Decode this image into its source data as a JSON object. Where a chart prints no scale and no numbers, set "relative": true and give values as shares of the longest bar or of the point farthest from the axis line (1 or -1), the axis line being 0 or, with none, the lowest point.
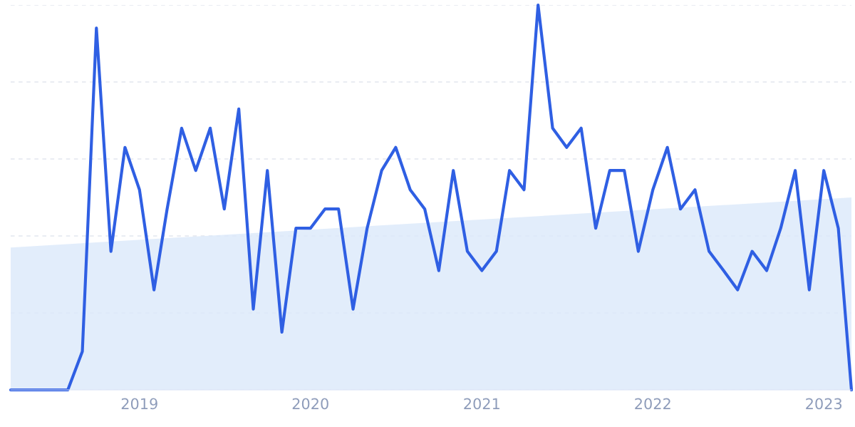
{
  "chart_data": {
    "type": "line",
    "relative": true,
    "xlim": [
      "2018-04",
      "2023-03"
    ],
    "xticks": [
      {
        "value": "2019",
        "label": "2019"
      },
      {
        "value": "2020",
        "label": "2020"
      },
      {
        "value": "2021",
        "label": "2021"
      },
      {
        "value": "2022",
        "label": "2022"
      },
      {
        "value": "2023",
        "label": "2023"
      }
    ],
    "tick_labels": "x",
    "grid": "y",
    "legend": false,
    "marker": "none",
    "line_style": "solid",
    "series": [
      {
        "type": "area",
        "color": "#dbe8fa",
        "x": [
          "2018-04",
          "2023-03"
        ],
        "values": [
          0.37,
          0.5
        ]
      },
      {
        "color": "#2f5fe3",
        "x": [
          "2018-04",
          "2018-05",
          "2018-06",
          "2018-07",
          "2018-08",
          "2018-09",
          "2018-10",
          "2018-11",
          "2018-12",
          "2019-01",
          "2019-02",
          "2019-03",
          "2019-04",
          "2019-05",
          "2019-06",
          "2019-07",
          "2019-08",
          "2019-09",
          "2019-10",
          "2019-11",
          "2019-12",
          "2020-01",
          "2020-02",
          "2020-03",
          "2020-04",
          "2020-05",
          "2020-06",
          "2020-07",
          "2020-08",
          "2020-09",
          "2020-10",
          "2020-11",
          "2020-12",
          "2021-01",
          "2021-02",
          "2021-03",
          "2021-04",
          "2021-05",
          "2021-06",
          "2021-07",
          "2021-08",
          "2021-09",
          "2021-10",
          "2021-11",
          "2021-12",
          "2022-01",
          "2022-02",
          "2022-03",
          "2022-04",
          "2022-05",
          "2022-06",
          "2022-07",
          "2022-08",
          "2022-09",
          "2022-10",
          "2022-11",
          "2022-12",
          "2023-01",
          "2023-02",
          "2023-03"
        ],
        "values": [
          0,
          0,
          0,
          0,
          0,
          0.1,
          0.94,
          0.36,
          0.63,
          0.52,
          0.26,
          0.47,
          0.68,
          0.57,
          0.68,
          0.47,
          0.73,
          0.21,
          0.57,
          0.15,
          0.42,
          0.42,
          0.47,
          0.47,
          0.21,
          0.42,
          0.57,
          0.63,
          0.52,
          0.47,
          0.31,
          0.57,
          0.36,
          0.31,
          0.36,
          0.57,
          0.52,
          1.0,
          0.68,
          0.63,
          0.68,
          0.42,
          0.57,
          0.57,
          0.36,
          0.52,
          0.63,
          0.47,
          0.52,
          0.36,
          0.31,
          0.26,
          0.36,
          0.31,
          0.42,
          0.57,
          0.26,
          0.57,
          0.42,
          0
        ]
      }
    ]
  }
}
